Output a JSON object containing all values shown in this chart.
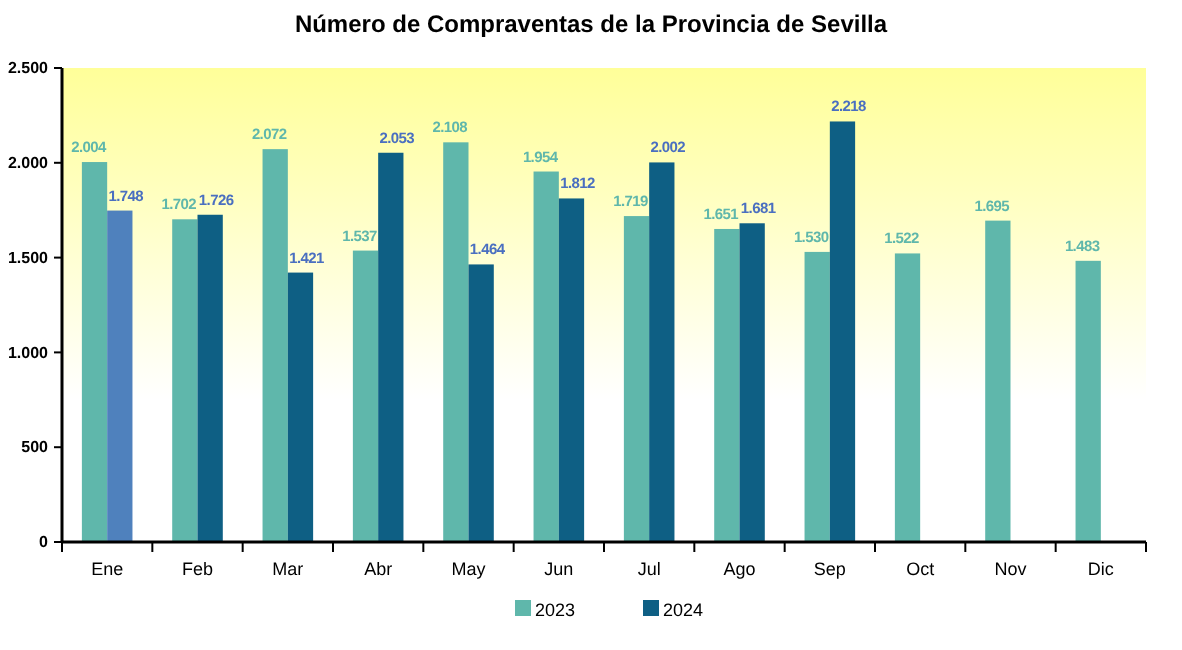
{
  "chart_data": {
    "type": "bar",
    "title": "Número de Compraventas de la Provincia de Sevilla",
    "categories": [
      "Ene",
      "Feb",
      "Mar",
      "Abr",
      "May",
      "Jun",
      "Jul",
      "Ago",
      "Sep",
      "Oct",
      "Nov",
      "Dic"
    ],
    "series": [
      {
        "name": "2023",
        "color": "#5fb7ab",
        "values": [
          2004,
          1702,
          2072,
          1537,
          2108,
          1954,
          1719,
          1651,
          1530,
          1522,
          1695,
          1483
        ],
        "value_labels": [
          "2.004",
          "1.702",
          "2.072",
          "1.537",
          "2.108",
          "1.954",
          "1.719",
          "1.651",
          "1.530",
          "1.522",
          "1.695",
          "1.483"
        ]
      },
      {
        "name": "2024",
        "color": "#0e5f84",
        "colors": [
          "#4f81bd",
          "#0e5f84",
          "#0e5f84",
          "#0e5f84",
          "#0e5f84",
          "#0e5f84",
          "#0e5f84",
          "#0e5f84",
          "#0e5f84",
          null,
          null,
          null
        ],
        "values": [
          1748,
          1726,
          1421,
          2053,
          1464,
          1812,
          2002,
          1681,
          2218,
          null,
          null,
          null
        ],
        "value_labels": [
          "1.748",
          "1.726",
          "1.421",
          "2.053",
          "1.464",
          "1.812",
          "2.002",
          "1.681",
          "2.218",
          null,
          null,
          null
        ]
      }
    ],
    "ylim": [
      0,
      2500
    ],
    "yticks": [
      0,
      {
        "value": 500,
        "label": "500"
      },
      {
        "value": 1000,
        "label": "1.000"
      },
      {
        "value": 1500,
        "label": "1.500"
      },
      {
        "value": 2000,
        "label": "2.000"
      },
      {
        "value": 2500,
        "label": "2.500"
      }
    ],
    "grid": false,
    "legend": "bottom"
  }
}
